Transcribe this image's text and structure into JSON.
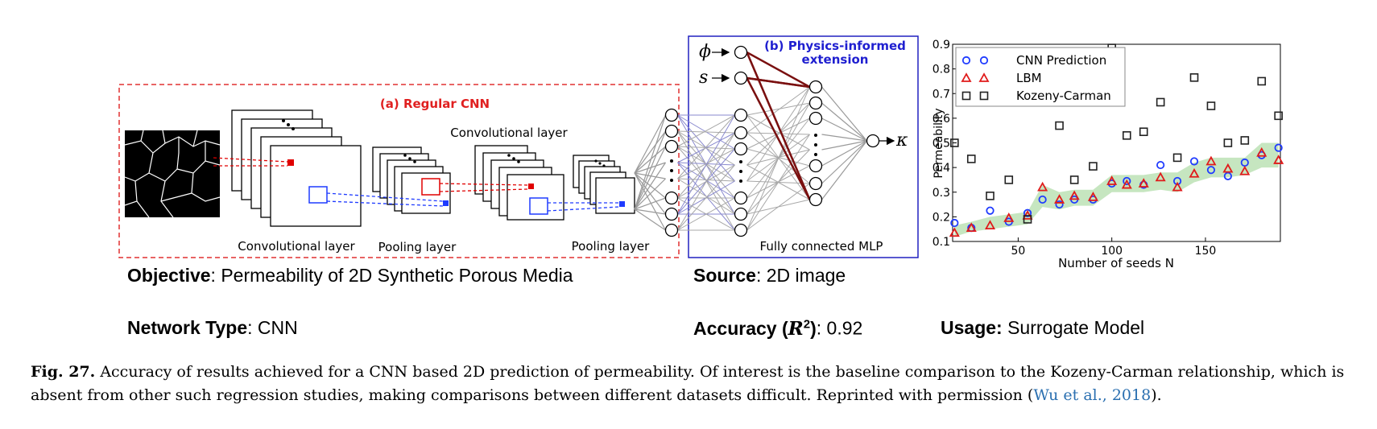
{
  "panel_a": {
    "title": "(a) Regular CNN",
    "conv_top_label": "Convolutional layer",
    "conv_bottom_label": "Convolutional layer",
    "pool1_label": "Pooling layer",
    "pool2_label": "Pooling layer"
  },
  "panel_b": {
    "title_line1": "(b) Physics-informed",
    "title_line2": "extension",
    "mlp_label": "Fully connected MLP",
    "input1": "ϕ",
    "input2": "s",
    "output": "κ"
  },
  "chart_data": {
    "type": "scatter",
    "xlabel": "Number of seeds N",
    "ylabel": "Permeability",
    "xlim": [
      15,
      190
    ],
    "ylim": [
      0.1,
      0.9
    ],
    "xticks": [
      50,
      100,
      150
    ],
    "yticks": [
      0.1,
      0.2,
      0.3,
      0.4,
      0.5,
      0.6,
      0.7,
      0.8,
      0.9
    ],
    "legend_position": "top-left",
    "series": [
      {
        "name": "CNN Prediction",
        "marker": "circle",
        "color": "#1f3bff",
        "points": [
          [
            16,
            0.175
          ],
          [
            25,
            0.155
          ],
          [
            35,
            0.225
          ],
          [
            45,
            0.18
          ],
          [
            55,
            0.215
          ],
          [
            63,
            0.27
          ],
          [
            72,
            0.25
          ],
          [
            80,
            0.27
          ],
          [
            90,
            0.27
          ],
          [
            100,
            0.335
          ],
          [
            108,
            0.345
          ],
          [
            117,
            0.33
          ],
          [
            126,
            0.41
          ],
          [
            135,
            0.345
          ],
          [
            144,
            0.425
          ],
          [
            153,
            0.39
          ],
          [
            162,
            0.365
          ],
          [
            171,
            0.42
          ],
          [
            180,
            0.45
          ],
          [
            189,
            0.48
          ]
        ]
      },
      {
        "name": "LBM",
        "marker": "triangle",
        "color": "#e01b1b",
        "points": [
          [
            16,
            0.135
          ],
          [
            25,
            0.155
          ],
          [
            35,
            0.165
          ],
          [
            45,
            0.195
          ],
          [
            55,
            0.205
          ],
          [
            63,
            0.32
          ],
          [
            72,
            0.27
          ],
          [
            80,
            0.285
          ],
          [
            90,
            0.28
          ],
          [
            100,
            0.345
          ],
          [
            108,
            0.33
          ],
          [
            117,
            0.335
          ],
          [
            126,
            0.36
          ],
          [
            135,
            0.32
          ],
          [
            144,
            0.375
          ],
          [
            153,
            0.425
          ],
          [
            162,
            0.395
          ],
          [
            171,
            0.385
          ],
          [
            180,
            0.46
          ],
          [
            189,
            0.43
          ]
        ]
      },
      {
        "name": "Kozeny-Carman",
        "marker": "square",
        "color": "#222222",
        "points": [
          [
            16,
            0.5
          ],
          [
            25,
            0.435
          ],
          [
            35,
            0.285
          ],
          [
            45,
            0.35
          ],
          [
            55,
            0.19
          ],
          [
            72,
            0.57
          ],
          [
            80,
            0.35
          ],
          [
            90,
            0.405
          ],
          [
            100,
            0.885
          ],
          [
            108,
            0.53
          ],
          [
            117,
            0.545
          ],
          [
            126,
            0.665
          ],
          [
            135,
            0.44
          ],
          [
            144,
            0.765
          ],
          [
            153,
            0.65
          ],
          [
            162,
            0.5
          ],
          [
            171,
            0.51
          ],
          [
            180,
            0.75
          ],
          [
            189,
            0.61
          ]
        ]
      }
    ],
    "band": {
      "color": "#b8e0b0",
      "lower": [
        [
          16,
          0.12
        ],
        [
          25,
          0.14
        ],
        [
          35,
          0.15
        ],
        [
          45,
          0.16
        ],
        [
          55,
          0.17
        ],
        [
          63,
          0.24
        ],
        [
          72,
          0.23
        ],
        [
          80,
          0.245
        ],
        [
          90,
          0.245
        ],
        [
          100,
          0.3
        ],
        [
          108,
          0.3
        ],
        [
          117,
          0.3
        ],
        [
          126,
          0.31
        ],
        [
          135,
          0.3
        ],
        [
          144,
          0.34
        ],
        [
          153,
          0.36
        ],
        [
          162,
          0.36
        ],
        [
          171,
          0.37
        ],
        [
          180,
          0.4
        ],
        [
          189,
          0.4
        ]
      ],
      "upper": [
        [
          16,
          0.165
        ],
        [
          25,
          0.18
        ],
        [
          35,
          0.2
        ],
        [
          45,
          0.21
        ],
        [
          55,
          0.22
        ],
        [
          63,
          0.33
        ],
        [
          72,
          0.3
        ],
        [
          80,
          0.31
        ],
        [
          90,
          0.31
        ],
        [
          100,
          0.37
        ],
        [
          108,
          0.37
        ],
        [
          117,
          0.37
        ],
        [
          126,
          0.38
        ],
        [
          135,
          0.38
        ],
        [
          144,
          0.42
        ],
        [
          153,
          0.44
        ],
        [
          162,
          0.44
        ],
        [
          171,
          0.44
        ],
        [
          180,
          0.5
        ],
        [
          189,
          0.5
        ]
      ]
    }
  },
  "info": {
    "objective_label": "Objective",
    "objective_value": ": Permeability of 2D Synthetic Porous Media",
    "source_label": "Source",
    "source_value": ": 2D image",
    "network_label": "Network Type",
    "network_value": ": CNN",
    "accuracy_label": "Accuracy (",
    "accuracy_r": "R",
    "accuracy_exp": "2",
    "accuracy_close": ")",
    "accuracy_value": ": 0.92",
    "usage_label": "Usage:",
    "usage_value": " Surrogate Model"
  },
  "caption": {
    "figref": "Fig. 27.",
    "text": " Accuracy of results achieved for a CNN based 2D prediction of permeability. Of interest is the baseline comparison to the Kozeny-Carman relationship, which is absent from other such regression studies, making comparisons between different datasets difficult. Reprinted with permission (",
    "cite": "Wu et al., 2018",
    "end": ")."
  }
}
